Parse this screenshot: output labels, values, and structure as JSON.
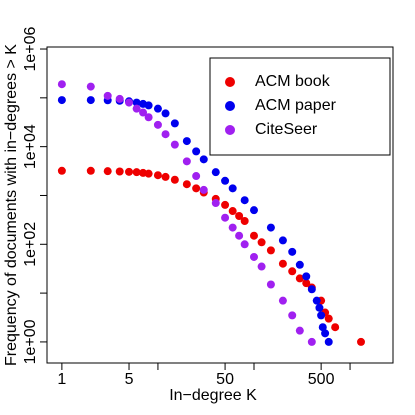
{
  "chart_data": {
    "type": "scatter",
    "x_label": "In−degree K",
    "y_label": "Frequency of documents with in−degrees > K",
    "log_x": true,
    "log_y": true,
    "xlim": [
      0.7,
      2800
    ],
    "ylim": [
      0.37,
      1100000
    ],
    "xticks": [
      1,
      5,
      50,
      500
    ],
    "xminor_ticks": [
      10,
      100,
      1000
    ],
    "yticks": [
      {
        "value": 1,
        "label": "1e+00"
      },
      {
        "value": 100,
        "label": "1e+02"
      },
      {
        "value": 10000,
        "label": "1e+04"
      },
      {
        "value": 1000000,
        "label": "1e+06"
      }
    ],
    "yminor_ticks": [
      10,
      1000,
      100000
    ],
    "legend": "top-right",
    "series": [
      {
        "name": "ACM book",
        "color": "#ee0000",
        "x": [
          1,
          2,
          3,
          4,
          5,
          6,
          7,
          8,
          10,
          12,
          15,
          20,
          25,
          30,
          40,
          50,
          60,
          70,
          80,
          100,
          120,
          150,
          200,
          250,
          300,
          350,
          400,
          500,
          550,
          600,
          700,
          1300
        ],
        "values": [
          3200,
          3200,
          3150,
          3100,
          3050,
          3000,
          2900,
          2800,
          2600,
          2400,
          2100,
          1700,
          1400,
          1150,
          850,
          640,
          480,
          380,
          300,
          150,
          110,
          75,
          40,
          28,
          20,
          16,
          13,
          7,
          4,
          3,
          2,
          1
        ]
      },
      {
        "name": "ACM paper",
        "color": "#0000ee",
        "x": [
          1,
          2,
          3,
          4,
          5,
          6,
          7,
          8,
          10,
          12,
          15,
          20,
          25,
          30,
          40,
          50,
          60,
          80,
          100,
          150,
          200,
          250,
          300,
          350,
          400,
          450,
          480,
          500,
          520,
          550,
          600
        ],
        "values": [
          90000,
          90000,
          89000,
          87000,
          85000,
          80000,
          75000,
          70000,
          60000,
          48000,
          30000,
          13000,
          8000,
          5500,
          3000,
          2000,
          1400,
          800,
          500,
          220,
          120,
          70,
          38,
          22,
          12,
          7,
          5,
          3.5,
          2,
          1.5,
          1
        ]
      },
      {
        "name": "CiteSeer",
        "color": "#a020f0",
        "x": [
          1,
          2,
          3,
          4,
          5,
          6,
          7,
          8,
          10,
          12,
          15,
          20,
          25,
          30,
          40,
          50,
          60,
          70,
          80,
          100,
          120,
          150,
          200,
          250,
          300,
          400
        ],
        "values": [
          190000,
          170000,
          110000,
          95000,
          80000,
          60000,
          50000,
          40000,
          28000,
          18000,
          11000,
          5000,
          2500,
          1300,
          700,
          350,
          220,
          150,
          100,
          55,
          35,
          15,
          7,
          3.5,
          1.7,
          1
        ]
      }
    ]
  }
}
